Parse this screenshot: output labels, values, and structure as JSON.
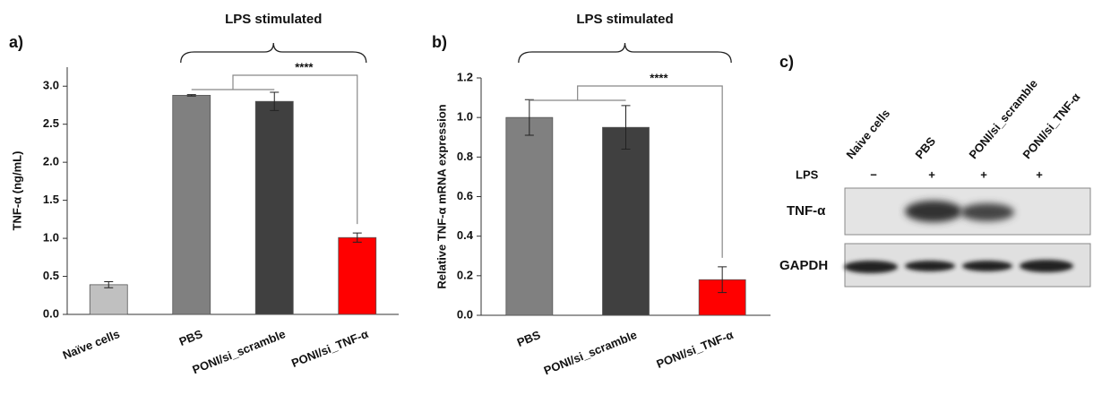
{
  "chart_data": [
    {
      "type": "bar",
      "panel": "a)",
      "title": "LPS stimulated",
      "ylabel": "TNF-α (ng/mL)",
      "categories": [
        "Naïve cells",
        "PBS",
        "PONI/si_scramble",
        "PONI/si_TNF-α"
      ],
      "values": [
        0.39,
        2.88,
        2.8,
        1.01
      ],
      "errors": [
        0.04,
        0.01,
        0.12,
        0.06
      ],
      "colors": [
        "#c0c0c0",
        "#808080",
        "#404040",
        "#ff0000"
      ],
      "ylim": [
        0,
        3.25
      ],
      "yticks": [
        {
          "value": 0,
          "label": "0.0"
        },
        0.5,
        {
          "value": 1,
          "label": "1.0"
        },
        1.5,
        {
          "value": 2,
          "label": "2.0"
        },
        2.5,
        {
          "value": 3,
          "label": "3.0"
        }
      ],
      "significance": "****"
    },
    {
      "type": "bar",
      "panel": "b)",
      "title": "LPS stimulated",
      "ylabel": "Relative TNF-α mRNA expression",
      "categories": [
        "PBS",
        "PONI/si_scramble",
        "PONI/si_TNF-α"
      ],
      "values": [
        1.0,
        0.95,
        0.18
      ],
      "errors": [
        0.09,
        0.11,
        0.065
      ],
      "colors": [
        "#808080",
        "#404040",
        "#ff0000"
      ],
      "ylim": [
        0,
        1.2
      ],
      "yticks": [
        {
          "value": 0,
          "label": "0.0"
        },
        0.2,
        0.4,
        0.6,
        0.8,
        {
          "value": 1,
          "label": "1.0"
        },
        1.2
      ],
      "significance": "****"
    }
  ],
  "blot": {
    "panel": "c)",
    "lanes": [
      "Naive cells",
      "PBS",
      "PONI/si_scramble",
      "PONI/si_TNF-α"
    ],
    "treatment": "LPS",
    "signs": [
      "−",
      "+",
      "+",
      "+"
    ],
    "rows": [
      "TNF-α",
      "GAPDH"
    ]
  }
}
